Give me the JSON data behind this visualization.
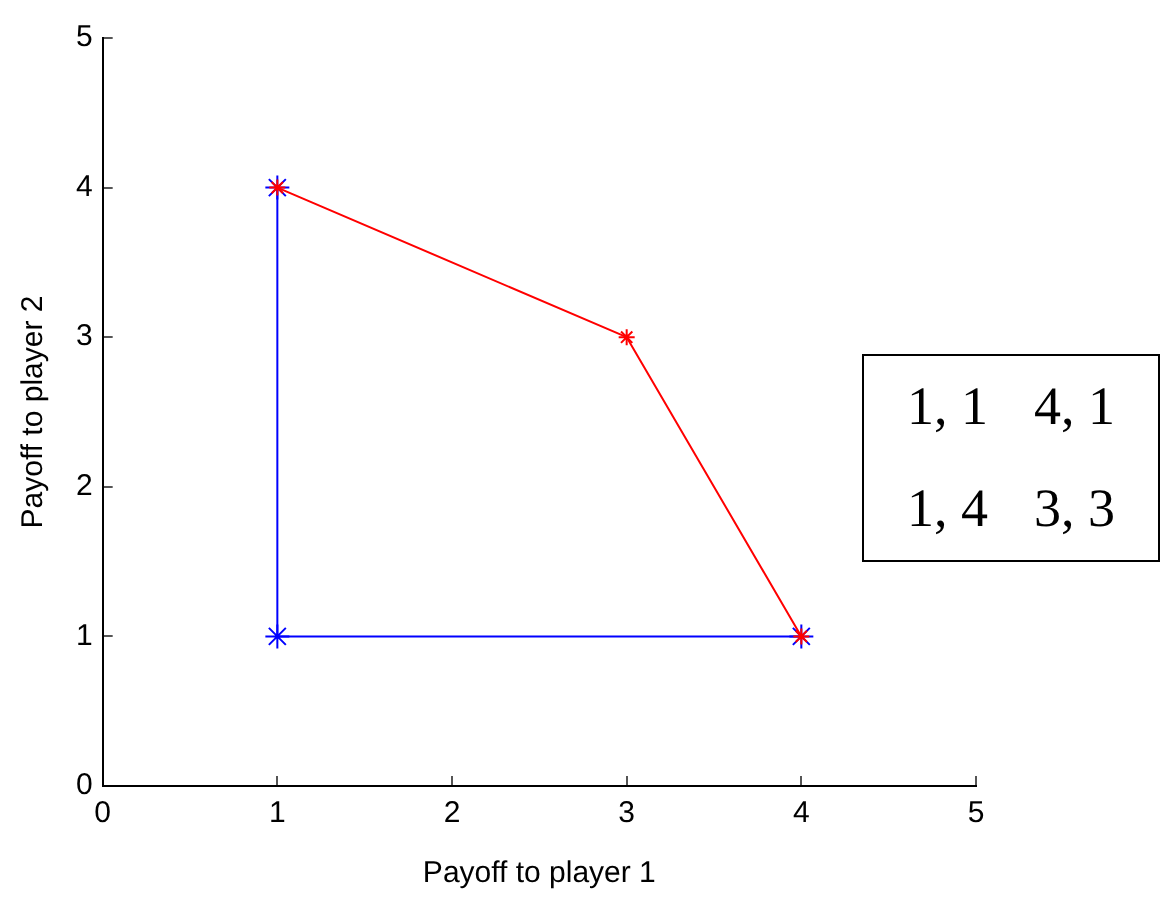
{
  "chart_data": {
    "type": "line",
    "xlabel": "Payoff to player 1",
    "ylabel": "Payoff to player 2",
    "series": [
      {
        "color": "#0000ff",
        "x": [
          1,
          1,
          4
        ],
        "values": [
          4,
          1,
          1
        ]
      },
      {
        "color": "#ff0000",
        "x": [
          1,
          3,
          4
        ],
        "values": [
          4,
          3,
          1
        ]
      }
    ],
    "xlim": [
      0,
      5
    ],
    "xticks": [
      0,
      1,
      2,
      3,
      4,
      5
    ],
    "ylim": [
      0,
      5
    ],
    "yticks": [
      0,
      1,
      2,
      3,
      4,
      5
    ],
    "grid": false,
    "legend": false,
    "marker": "cross",
    "line_style": "solid",
    "annotations": [
      "1, 1",
      "4, 1",
      "1, 4",
      "3, 3"
    ]
  }
}
